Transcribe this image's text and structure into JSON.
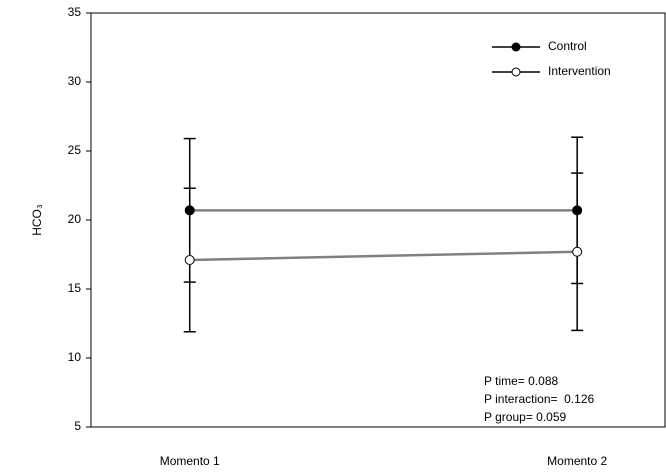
{
  "chart_data": {
    "type": "line",
    "y_label": "HCO₃",
    "categories": [
      "Momento 1",
      "Momento 2"
    ],
    "series": [
      {
        "name": "Control",
        "color": "#808080",
        "marker_fill": "#000000",
        "values": [
          20.7,
          20.7
        ],
        "errors": [
          5.2,
          5.3
        ]
      },
      {
        "name": "Intervention",
        "color": "#808080",
        "marker_fill": "#ffffff",
        "values": [
          17.1,
          17.7
        ],
        "errors": [
          5.2,
          5.7
        ]
      }
    ],
    "ylim": [
      5,
      35
    ],
    "yticks": [
      5,
      10,
      15,
      20,
      25,
      30,
      35
    ],
    "grid": false,
    "legend": "upper right",
    "annotations": [
      "P time= 0.088",
      "P interaction=  0.126",
      "P group= 0.059"
    ]
  }
}
